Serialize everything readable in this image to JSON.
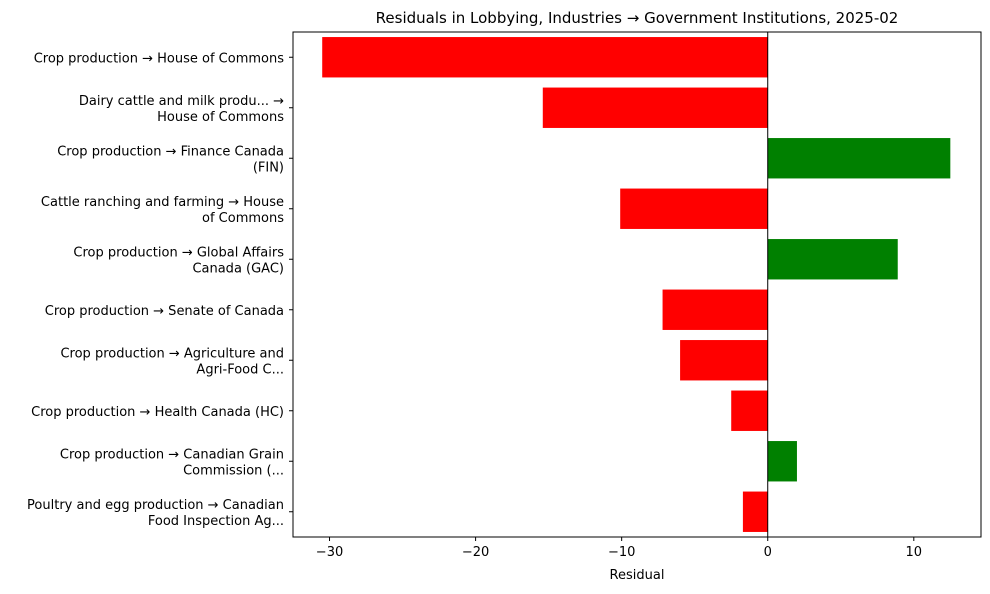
{
  "chart_data": {
    "type": "bar",
    "orientation": "horizontal",
    "title": "Residuals in Lobbying, Industries → Government Institutions, 2025-02",
    "xlabel": "Residual",
    "ylabel": "",
    "xlim": [
      -32.5,
      14.6
    ],
    "xticks": [
      -30,
      -20,
      -10,
      0,
      10
    ],
    "xtick_labels": [
      "−30",
      "−20",
      "−10",
      "0",
      "10"
    ],
    "grid": false,
    "positive_color": "#008000",
    "negative_color": "#ff0000",
    "categories": [
      [
        "Crop production → House of Commons"
      ],
      [
        "Dairy cattle and milk produ... →",
        "House of Commons"
      ],
      [
        "Crop production → Finance Canada",
        "(FIN)"
      ],
      [
        "Cattle ranching and farming → House",
        "of Commons"
      ],
      [
        "Crop production → Global Affairs",
        "Canada (GAC)"
      ],
      [
        "Crop production → Senate of Canada"
      ],
      [
        "Crop production → Agriculture and",
        "Agri-Food C..."
      ],
      [
        "Crop production → Health Canada (HC)"
      ],
      [
        "Crop production → Canadian Grain",
        "Commission (..."
      ],
      [
        "Poultry and egg production → Canadian",
        "Food Inspection Ag..."
      ]
    ],
    "values": [
      -30.5,
      -15.4,
      12.5,
      -10.1,
      8.9,
      -7.2,
      -6.0,
      -2.5,
      2.0,
      -1.7
    ]
  }
}
